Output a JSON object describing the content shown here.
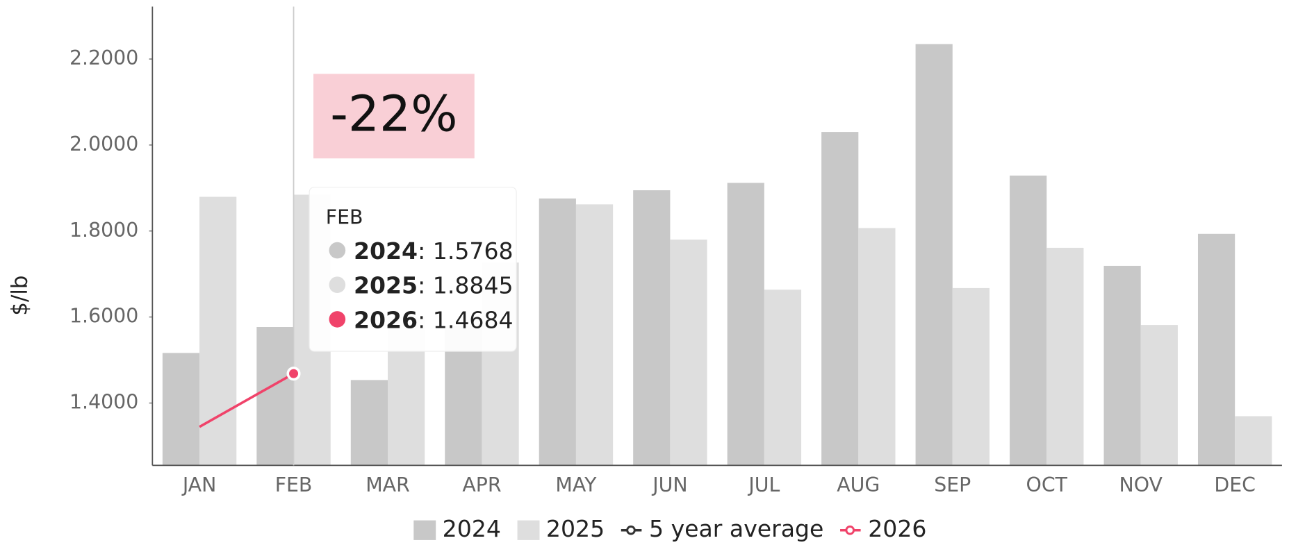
{
  "chart_data": {
    "type": "bar",
    "annotation": "-22%",
    "y_label": "$/lb",
    "categories": [
      "JAN",
      "FEB",
      "MAR",
      "APR",
      "MAY",
      "JUN",
      "JUL",
      "AUG",
      "SEP",
      "OCT",
      "NOV",
      "DEC"
    ],
    "series": [
      {
        "name": "2024",
        "type": "bar",
        "color": "#c8c8c8",
        "values": [
          1.5165,
          1.5768,
          1.4535,
          1.58,
          1.8757,
          1.8948,
          1.912,
          2.0304,
          2.2348,
          1.929,
          1.719,
          1.7935
        ]
      },
      {
        "name": "2025",
        "type": "bar",
        "color": "#dedede",
        "values": [
          1.8795,
          1.8845,
          1.6,
          1.7267,
          1.862,
          1.78,
          1.6636,
          1.8069,
          1.6674,
          1.761,
          1.5815,
          1.3694
        ]
      },
      {
        "name": "5 year average",
        "type": "line",
        "color": "#333333",
        "values": [
          null,
          null,
          null,
          null,
          null,
          null,
          null,
          null,
          null,
          null,
          null,
          null
        ]
      },
      {
        "name": "2026",
        "type": "line",
        "color": "#f0436a",
        "values": [
          1.3446,
          1.4684,
          null,
          null,
          null,
          null,
          null,
          null,
          null,
          null,
          null,
          null
        ]
      }
    ],
    "ylim": [
      1.255,
      2.322
    ],
    "yticks": [
      {
        "value": 1.4,
        "label": "1.4000"
      },
      {
        "value": 1.6,
        "label": "1.6000"
      },
      {
        "value": 1.8,
        "label": "1.8000"
      },
      {
        "value": 2.0,
        "label": "2.0000"
      },
      {
        "value": 2.2,
        "label": "2.2000"
      }
    ],
    "legend": "bottom",
    "tooltip_index": 1
  }
}
